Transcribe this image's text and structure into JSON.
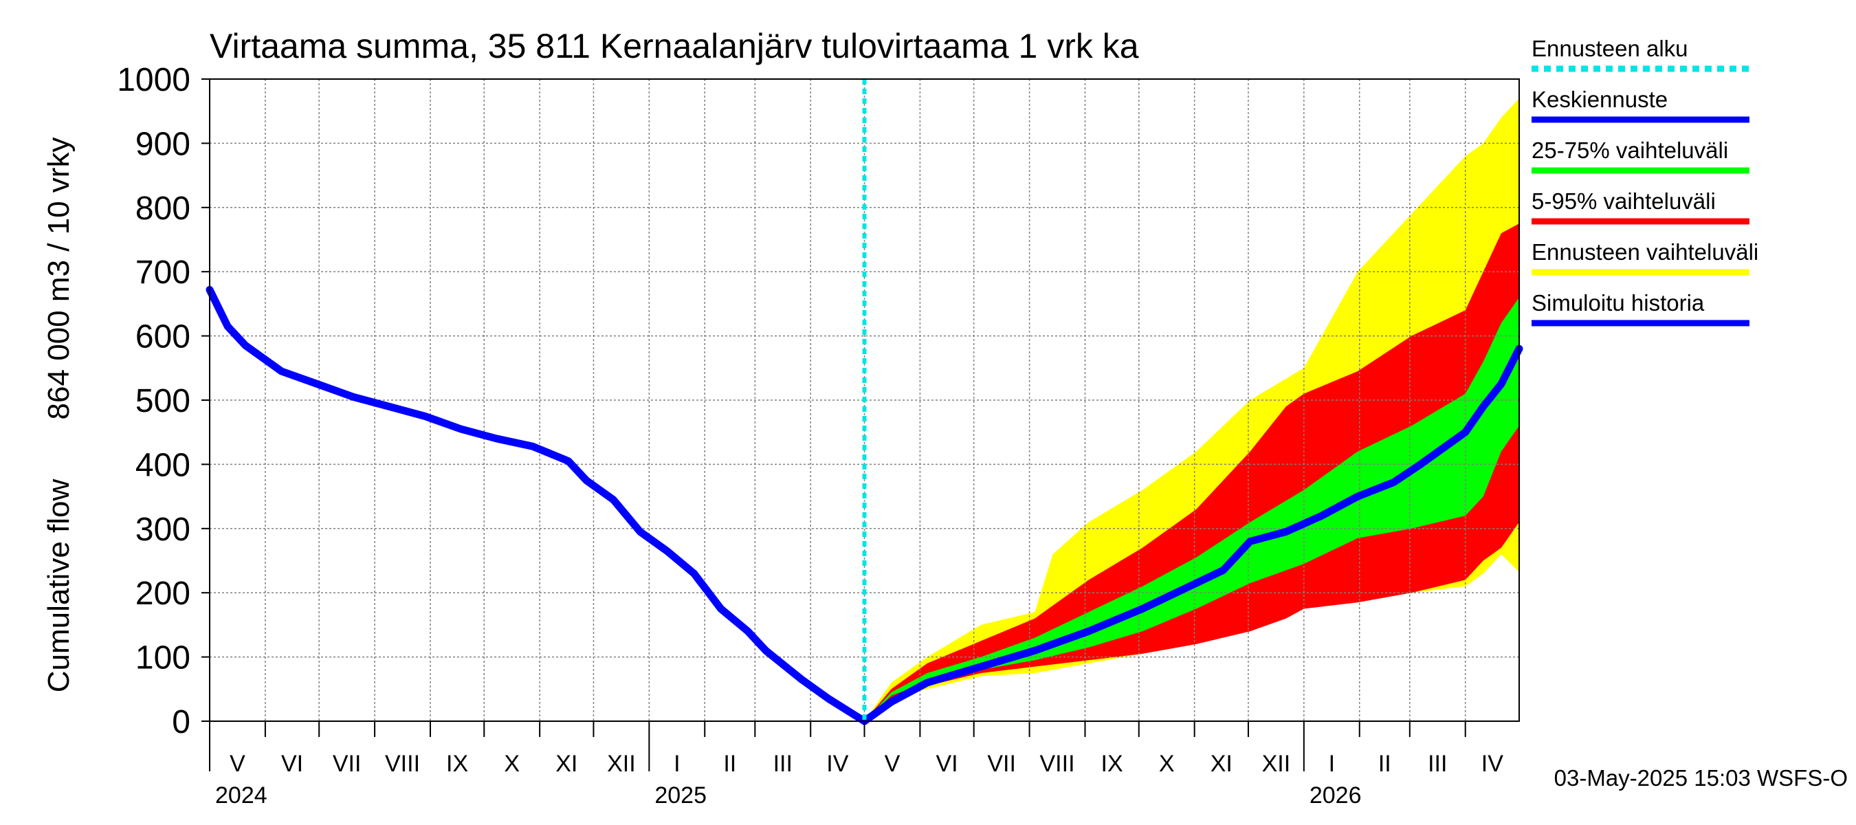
{
  "chart_data": {
    "type": "area",
    "title": "Virtaama summa, 35 811 Kernaalanjärv tulovirtaama 1 vrk ka",
    "ylabel_line1": "864 000 m3 / 10 vrky",
    "ylabel_line2": "Cumulative flow",
    "ylim": [
      0,
      1000
    ],
    "yticks": [
      0,
      100,
      200,
      300,
      400,
      500,
      600,
      700,
      800,
      900,
      1000
    ],
    "xlim_days": [
      0,
      730
    ],
    "forecast_start_day": 365,
    "months": [
      {
        "label": "V",
        "start": 0,
        "end": 31
      },
      {
        "label": "VI",
        "start": 31,
        "end": 61
      },
      {
        "label": "VII",
        "start": 61,
        "end": 92
      },
      {
        "label": "VIII",
        "start": 92,
        "end": 123
      },
      {
        "label": "IX",
        "start": 123,
        "end": 153
      },
      {
        "label": "X",
        "start": 153,
        "end": 184
      },
      {
        "label": "XI",
        "start": 184,
        "end": 214
      },
      {
        "label": "XII",
        "start": 214,
        "end": 245
      },
      {
        "label": "I",
        "start": 245,
        "end": 276
      },
      {
        "label": "II",
        "start": 276,
        "end": 304
      },
      {
        "label": "III",
        "start": 304,
        "end": 335
      },
      {
        "label": "IV",
        "start": 335,
        "end": 365
      },
      {
        "label": "V",
        "start": 365,
        "end": 396
      },
      {
        "label": "VI",
        "start": 396,
        "end": 426
      },
      {
        "label": "VII",
        "start": 426,
        "end": 457
      },
      {
        "label": "VIII",
        "start": 457,
        "end": 488
      },
      {
        "label": "IX",
        "start": 488,
        "end": 518
      },
      {
        "label": "X",
        "start": 518,
        "end": 549
      },
      {
        "label": "XI",
        "start": 549,
        "end": 579
      },
      {
        "label": "XII",
        "start": 579,
        "end": 610
      },
      {
        "label": "I",
        "start": 610,
        "end": 641
      },
      {
        "label": "II",
        "start": 641,
        "end": 669
      },
      {
        "label": "III",
        "start": 669,
        "end": 700
      },
      {
        "label": "IV",
        "start": 700,
        "end": 730
      }
    ],
    "years": [
      {
        "label": "2024",
        "day": 0
      },
      {
        "label": "2025",
        "day": 245
      },
      {
        "label": "2026",
        "day": 610
      }
    ],
    "history": {
      "name": "Simuloitu historia",
      "x": [
        0,
        10,
        20,
        40,
        60,
        80,
        100,
        120,
        140,
        160,
        180,
        200,
        210,
        225,
        240,
        255,
        270,
        285,
        300,
        310,
        330,
        345,
        365
      ],
      "y": [
        672,
        615,
        585,
        545,
        525,
        505,
        490,
        475,
        455,
        440,
        428,
        405,
        375,
        345,
        295,
        265,
        230,
        175,
        140,
        110,
        65,
        35,
        0
      ]
    },
    "median": {
      "name": "Keskiennuste",
      "x": [
        365,
        380,
        400,
        430,
        460,
        490,
        520,
        550,
        565,
        580,
        600,
        620,
        640,
        660,
        675,
        690,
        700,
        710,
        720,
        730
      ],
      "y": [
        0,
        30,
        60,
        85,
        110,
        140,
        175,
        215,
        235,
        280,
        295,
        320,
        350,
        372,
        400,
        430,
        450,
        490,
        525,
        580
      ]
    },
    "band_full": {
      "name": "Ennusteen vaihteluväli",
      "x": [
        365,
        380,
        400,
        430,
        460,
        470,
        490,
        520,
        550,
        580,
        610,
        640,
        670,
        700,
        710,
        720,
        730
      ],
      "y_low": [
        0,
        35,
        50,
        70,
        75,
        80,
        90,
        105,
        120,
        150,
        180,
        190,
        200,
        210,
        230,
        260,
        232
      ],
      "y_high": [
        0,
        60,
        100,
        150,
        170,
        260,
        310,
        360,
        420,
        500,
        550,
        700,
        790,
        880,
        900,
        940,
        970
      ]
    },
    "band_5_95": {
      "name": "5-95% vaihteluväli",
      "x": [
        365,
        380,
        400,
        430,
        460,
        490,
        520,
        550,
        580,
        600,
        610,
        640,
        670,
        700,
        710,
        720,
        730
      ],
      "y_low": [
        0,
        35,
        55,
        75,
        85,
        95,
        105,
        120,
        140,
        160,
        175,
        185,
        200,
        220,
        250,
        270,
        310
      ],
      "y_high": [
        0,
        50,
        90,
        125,
        160,
        220,
        270,
        330,
        420,
        490,
        510,
        545,
        600,
        640,
        700,
        760,
        775
      ]
    },
    "band_25_75": {
      "name": "25-75% vaihteluväli",
      "x": [
        365,
        380,
        400,
        430,
        460,
        490,
        520,
        550,
        580,
        610,
        640,
        670,
        700,
        710,
        720,
        730
      ],
      "y_low": [
        0,
        40,
        60,
        80,
        95,
        115,
        140,
        175,
        215,
        245,
        285,
        300,
        320,
        350,
        420,
        460
      ],
      "y_high": [
        0,
        45,
        75,
        100,
        130,
        170,
        210,
        255,
        310,
        360,
        420,
        460,
        510,
        560,
        620,
        660
      ]
    },
    "legend": [
      {
        "name": "Ennusteen alku",
        "color": "#00e5e5",
        "style": "dotted"
      },
      {
        "name": "Keskiennuste",
        "color": "#0000ff",
        "style": "solid"
      },
      {
        "name": "25-75% vaihteluväli",
        "color": "#00ff00",
        "style": "solid"
      },
      {
        "name": "5-95% vaihteluväli",
        "color": "#ff0000",
        "style": "solid"
      },
      {
        "name": "Ennusteen vaihteluväli",
        "color": "#ffff00",
        "style": "solid"
      },
      {
        "name": "Simuloitu historia",
        "color": "#0000ff",
        "style": "solid"
      }
    ],
    "colors": {
      "full": "#ffff00",
      "p5_95": "#ff0000",
      "p25_75": "#00ff00",
      "line": "#0000ff",
      "forecast_start": "#00e5e5",
      "grid": "#808080"
    }
  },
  "footer": {
    "timestamp": "03-May-2025 15:03 WSFS-O"
  }
}
